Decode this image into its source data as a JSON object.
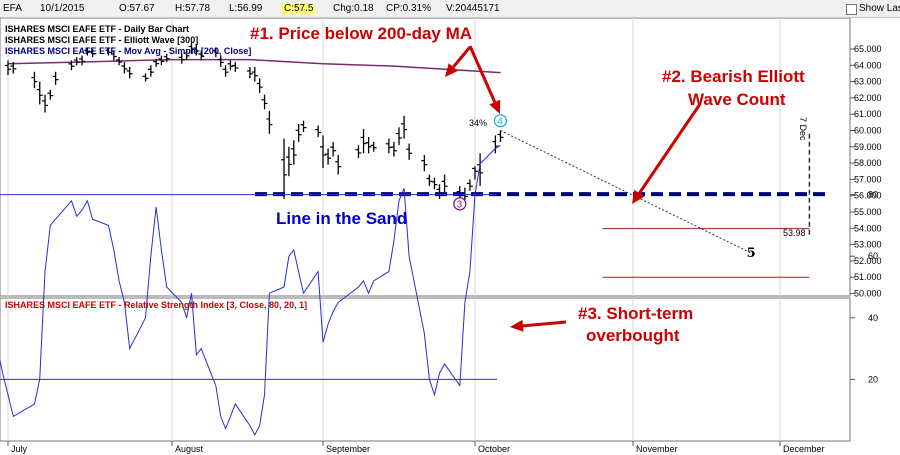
{
  "toolbar": {
    "symbol": "EFA",
    "date": "10/1/2015",
    "open": "O:57.67",
    "high": "H:57.78",
    "low": "L:56.99",
    "close": "C:57.5",
    "change": "Chg:0.18",
    "change_pct": "CP:0.31%",
    "volume": "V:20445171",
    "show_last": "Show Last"
  },
  "legend": {
    "line1": "ISHARES MSCI EAFE ETF - Daily Bar Chart",
    "line2": "ISHARES MSCI EAFE ETF - Elliott Wave [300]",
    "line3": "ISHARES MSCI EAFE ETF - Mov Avg - Simple [200, Close]",
    "rsi": "ISHARES MSCI EAFE ETF - Relative Strength Index [3, Close, 80, 20, 1]"
  },
  "annotations": {
    "a1": "#1. Price below 200-day MA",
    "a2_line1": "#2. Bearish Elliott",
    "a2_line2": "Wave Count",
    "a3_line1": "#3. Short-term",
    "a3_line2": "overbought",
    "line_in_sand": "Line in the Sand",
    "wave3": "3",
    "wave4": "4",
    "wave5": "5",
    "retrace": "34%",
    "target": "53.98",
    "dec_marker": "7 Dec"
  },
  "colors": {
    "bars": "#000000",
    "ma": "#7b2a6d",
    "rsi_line": "#2b2bd6",
    "rsi_bands": "#2b2bd6",
    "line_in_sand": "#00007a",
    "annotation": "#cc0000",
    "wave_label": "#7a1a7a",
    "wave4": "#19b6c9",
    "target_line": "#8b2a1a",
    "rsi_title": "#cc0000"
  },
  "chart_data": [
    {
      "type": "ohlc",
      "title": "ISHARES MSCI EAFE ETF - Daily Bar Chart",
      "x_tick_labels": [
        "July",
        "August",
        "September",
        "October",
        "November",
        "December"
      ],
      "ylim": [
        50,
        65.5
      ],
      "y_ticks": [
        50,
        51,
        52,
        53,
        54,
        55,
        56,
        57,
        58,
        59,
        60,
        61,
        62,
        63,
        64,
        65
      ],
      "bars": [
        {
          "date": "2015-07-01",
          "h": 64.3,
          "l": 63.4
        },
        {
          "date": "2015-07-02",
          "h": 64.2,
          "l": 63.5
        },
        {
          "date": "2015-07-06",
          "h": 63.6,
          "l": 62.6
        },
        {
          "date": "2015-07-07",
          "h": 63.0,
          "l": 61.6
        },
        {
          "date": "2015-07-08",
          "h": 62.2,
          "l": 61.1
        },
        {
          "date": "2015-07-09",
          "h": 62.5,
          "l": 61.9
        },
        {
          "date": "2015-07-10",
          "h": 63.6,
          "l": 62.8
        },
        {
          "date": "2015-07-13",
          "h": 64.3,
          "l": 63.7
        },
        {
          "date": "2015-07-14",
          "h": 64.5,
          "l": 64.0
        },
        {
          "date": "2015-07-15",
          "h": 64.6,
          "l": 64.0
        },
        {
          "date": "2015-07-16",
          "h": 65.1,
          "l": 64.6
        },
        {
          "date": "2015-07-17",
          "h": 65.0,
          "l": 64.5
        },
        {
          "date": "2015-07-20",
          "h": 65.1,
          "l": 64.6
        },
        {
          "date": "2015-07-21",
          "h": 64.9,
          "l": 64.3
        },
        {
          "date": "2015-07-22",
          "h": 64.5,
          "l": 64.0
        },
        {
          "date": "2015-07-23",
          "h": 64.2,
          "l": 63.5
        },
        {
          "date": "2015-07-24",
          "h": 63.9,
          "l": 63.2
        },
        {
          "date": "2015-07-27",
          "h": 63.5,
          "l": 63.0
        },
        {
          "date": "2015-07-28",
          "h": 64.0,
          "l": 63.3
        },
        {
          "date": "2015-07-29",
          "h": 64.4,
          "l": 63.9
        },
        {
          "date": "2015-07-30",
          "h": 64.6,
          "l": 64.0
        },
        {
          "date": "2015-07-31",
          "h": 64.7,
          "l": 64.2
        },
        {
          "date": "2015-08-03",
          "h": 64.7,
          "l": 64.1
        },
        {
          "date": "2015-08-04",
          "h": 65.0,
          "l": 64.3
        },
        {
          "date": "2015-08-05",
          "h": 65.4,
          "l": 64.7
        },
        {
          "date": "2015-08-06",
          "h": 65.3,
          "l": 64.6
        },
        {
          "date": "2015-08-07",
          "h": 64.9,
          "l": 64.3
        },
        {
          "date": "2015-08-10",
          "h": 65.1,
          "l": 64.5
        },
        {
          "date": "2015-08-11",
          "h": 64.6,
          "l": 63.9
        },
        {
          "date": "2015-08-12",
          "h": 64.0,
          "l": 63.3
        },
        {
          "date": "2015-08-13",
          "h": 64.3,
          "l": 63.7
        },
        {
          "date": "2015-08-14",
          "h": 64.2,
          "l": 63.6
        },
        {
          "date": "2015-08-17",
          "h": 63.9,
          "l": 63.2
        },
        {
          "date": "2015-08-18",
          "h": 63.9,
          "l": 63.0
        },
        {
          "date": "2015-08-19",
          "h": 63.2,
          "l": 62.3
        },
        {
          "date": "2015-08-20",
          "h": 62.2,
          "l": 61.3
        },
        {
          "date": "2015-08-21",
          "h": 61.2,
          "l": 59.8
        },
        {
          "date": "2015-08-24",
          "h": 59.5,
          "l": 55.8
        },
        {
          "date": "2015-08-25",
          "h": 59.0,
          "l": 57.2
        },
        {
          "date": "2015-08-26",
          "h": 59.4,
          "l": 57.9
        },
        {
          "date": "2015-08-27",
          "h": 60.4,
          "l": 59.3
        },
        {
          "date": "2015-08-28",
          "h": 60.6,
          "l": 59.9
        },
        {
          "date": "2015-08-31",
          "h": 60.3,
          "l": 59.6
        },
        {
          "date": "2015-09-01",
          "h": 59.7,
          "l": 57.7
        },
        {
          "date": "2015-09-02",
          "h": 58.9,
          "l": 57.9
        },
        {
          "date": "2015-09-03",
          "h": 59.3,
          "l": 58.4
        },
        {
          "date": "2015-09-04",
          "h": 58.5,
          "l": 57.3
        },
        {
          "date": "2015-09-08",
          "h": 59.1,
          "l": 58.3
        },
        {
          "date": "2015-09-09",
          "h": 60.1,
          "l": 58.6
        },
        {
          "date": "2015-09-10",
          "h": 59.6,
          "l": 58.6
        },
        {
          "date": "2015-09-11",
          "h": 59.3,
          "l": 58.7
        },
        {
          "date": "2015-09-14",
          "h": 59.5,
          "l": 58.6
        },
        {
          "date": "2015-09-15",
          "h": 59.3,
          "l": 58.4
        },
        {
          "date": "2015-09-16",
          "h": 60.2,
          "l": 59.1
        },
        {
          "date": "2015-09-17",
          "h": 60.9,
          "l": 59.5
        },
        {
          "date": "2015-09-18",
          "h": 59.2,
          "l": 58.2
        },
        {
          "date": "2015-09-21",
          "h": 58.5,
          "l": 57.5
        },
        {
          "date": "2015-09-22",
          "h": 57.3,
          "l": 56.6
        },
        {
          "date": "2015-09-23",
          "h": 57.1,
          "l": 56.4
        },
        {
          "date": "2015-09-24",
          "h": 56.7,
          "l": 55.8
        },
        {
          "date": "2015-09-25",
          "h": 57.3,
          "l": 56.1
        },
        {
          "date": "2015-09-28",
          "h": 56.6,
          "l": 55.6
        },
        {
          "date": "2015-09-29",
          "h": 56.5,
          "l": 55.6
        },
        {
          "date": "2015-09-30",
          "h": 57.0,
          "l": 56.3
        },
        {
          "date": "2015-10-01",
          "h": 57.8,
          "l": 56.99,
          "o": 57.67,
          "c": 57.5
        },
        {
          "date": "2015-10-02",
          "h": 58.6,
          "l": 56.6
        },
        {
          "date": "2015-10-05",
          "h": 59.7,
          "l": 58.6
        },
        {
          "date": "2015-10-06",
          "h": 60.0,
          "l": 59.3
        }
      ],
      "moving_average_200": [
        {
          "date": "2015-07-01",
          "v": 64.1
        },
        {
          "date": "2015-07-15",
          "v": 64.2
        },
        {
          "date": "2015-08-01",
          "v": 64.35
        },
        {
          "date": "2015-08-17",
          "v": 64.35
        },
        {
          "date": "2015-09-01",
          "v": 64.1
        },
        {
          "date": "2015-09-15",
          "v": 63.95
        },
        {
          "date": "2015-10-06",
          "v": 63.55
        }
      ],
      "line_in_the_sand": 56.1,
      "elliott_wave": [
        {
          "label": "4",
          "date": "2015-10-06",
          "v": 60.6
        },
        {
          "label": "3",
          "date": "2015-09-28",
          "v": 55.5
        },
        {
          "label": "5",
          "date": "2015-11-25",
          "v": 52.5
        }
      ],
      "wave4_retracement": "34%",
      "projection": [
        {
          "date": "2015-10-06",
          "v": 60.0
        },
        {
          "date": "2015-11-25",
          "v": 52.5
        }
      ],
      "target_lines": [
        {
          "v": 53.98,
          "from": "2015-10-26",
          "to": "2015-12-07"
        },
        {
          "v": 51.0,
          "from": "2015-10-26",
          "to": "2015-12-07"
        }
      ],
      "target_label": "53.98",
      "dec_marker_date": "2015-12-07"
    },
    {
      "type": "line",
      "title": "ISHARES MSCI EAFE ETF - Relative Strength Index [3, Close, 80, 20, 1]",
      "ylim": [
        0,
        100
      ],
      "y_ticks": [
        20,
        40,
        60,
        80
      ],
      "bands": [
        80,
        20
      ],
      "x": [
        "2015-06-25",
        "2015-06-29",
        "2015-06-30",
        "2015-07-01",
        "2015-07-02",
        "2015-07-06",
        "2015-07-07",
        "2015-07-08",
        "2015-07-09",
        "2015-07-10",
        "2015-07-13",
        "2015-07-14",
        "2015-07-15",
        "2015-07-16",
        "2015-07-17",
        "2015-07-20",
        "2015-07-21",
        "2015-07-22",
        "2015-07-23",
        "2015-07-24",
        "2015-07-27",
        "2015-07-28",
        "2015-07-29",
        "2015-07-30",
        "2015-07-31",
        "2015-08-03",
        "2015-08-04",
        "2015-08-05",
        "2015-08-06",
        "2015-08-07",
        "2015-08-10",
        "2015-08-11",
        "2015-08-12",
        "2015-08-13",
        "2015-08-14",
        "2015-08-17",
        "2015-08-18",
        "2015-08-19",
        "2015-08-20",
        "2015-08-21",
        "2015-08-24",
        "2015-08-25",
        "2015-08-26",
        "2015-08-27",
        "2015-08-28",
        "2015-08-31",
        "2015-09-01",
        "2015-09-02",
        "2015-09-03",
        "2015-09-04",
        "2015-09-08",
        "2015-09-09",
        "2015-09-10",
        "2015-09-11",
        "2015-09-14",
        "2015-09-15",
        "2015-09-16",
        "2015-09-17",
        "2015-09-18",
        "2015-09-21",
        "2015-09-22",
        "2015-09-23",
        "2015-09-24",
        "2015-09-25",
        "2015-09-28",
        "2015-09-29",
        "2015-09-30",
        "2015-10-01",
        "2015-10-02",
        "2015-10-05",
        "2015-10-06"
      ],
      "values": [
        25,
        30,
        22,
        15,
        8,
        12,
        20,
        55,
        70,
        72,
        78,
        73,
        75,
        78,
        72,
        70,
        62,
        52,
        45,
        30,
        40,
        60,
        76,
        62,
        50,
        45,
        40,
        48,
        28,
        30,
        18,
        8,
        4,
        8,
        12,
        5,
        2,
        5,
        15,
        48,
        50,
        60,
        62,
        55,
        48,
        55,
        32,
        38,
        42,
        45,
        50,
        52,
        48,
        52,
        55,
        65,
        78,
        82,
        60,
        35,
        20,
        15,
        22,
        25,
        18,
        45,
        55,
        80,
        90,
        95,
        96
      ]
    }
  ]
}
